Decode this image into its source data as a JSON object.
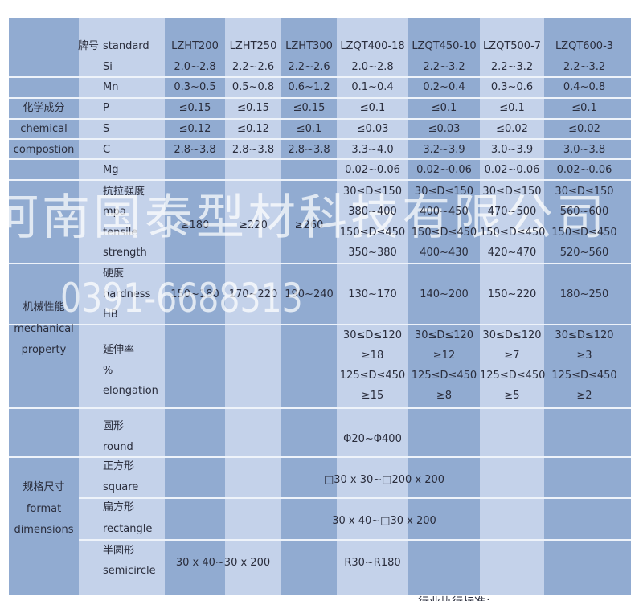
{
  "header": {
    "grade_cn": "牌号",
    "grade_en": "standard",
    "grades": [
      "LZHT200",
      "LZHT250",
      "LZHT300",
      "LZQT400-18",
      "LZQT450-10",
      "LZQT500-7",
      "LZQT600-3"
    ]
  },
  "chemical": {
    "label_cn": "化学成分",
    "label_en1": "chemical",
    "label_en2": "compostion",
    "rows": [
      {
        "name": "Si",
        "values": [
          "2.0~2.8",
          "2.2~2.6",
          "2.2~2.6",
          "2.0~2.8",
          "2.2~3.2",
          "2.2~3.2",
          "2.2~3.2"
        ]
      },
      {
        "name": "Mn",
        "values": [
          "0.3~0.5",
          "0.5~0.8",
          "0.6~1.2",
          "0.1~0.4",
          "0.2~0.4",
          "0.3~0.6",
          "0.4~0.8"
        ]
      },
      {
        "name": "P",
        "values": [
          "≤0.15",
          "≤0.15",
          "≤0.15",
          "≤0.1",
          "≤0.1",
          "≤0.1",
          "≤0.1"
        ]
      },
      {
        "name": "S",
        "values": [
          "≤0.12",
          "≤0.12",
          "≤0.1",
          "≤0.03",
          "≤0.03",
          "≤0.02",
          "≤0.02"
        ]
      },
      {
        "name": "C",
        "values": [
          "2.8~3.8",
          "2.8~3.8",
          "2.8~3.8",
          "3.3~4.0",
          "3.2~3.9",
          "3.0~3.9",
          "3.0~3.8"
        ]
      },
      {
        "name": "Mg",
        "values": [
          "",
          "",
          "",
          "0.02~0.06",
          "0.02~0.06",
          "0.02~0.06",
          "0.02~0.06"
        ]
      }
    ]
  },
  "mechanical": {
    "label_cn": "机械性能",
    "label_en1": "mechanical",
    "label_en2": "property",
    "tensile": {
      "labels": [
        "抗拉强度",
        "mpa",
        "tensile",
        "strength"
      ],
      "ht": [
        "≥180",
        "≥220",
        "≥260"
      ],
      "qt": [
        {
          "r1": "30≤D≤150",
          "v1": "380~400",
          "r2": "150≤D≤450",
          "v2": "350~380"
        },
        {
          "r1": "30≤D≤150",
          "v1": "400~450",
          "r2": "150≤D≤450",
          "v2": "400~430"
        },
        {
          "r1": "30≤D≤150",
          "v1": "470~500",
          "r2": "150≤D≤450",
          "v2": "420~470"
        },
        {
          "r1": "30≤D≤150",
          "v1": "560~600",
          "r2": "150≤D≤450",
          "v2": "520~560"
        }
      ]
    },
    "hardness": {
      "labels": [
        "硬度",
        "hardness",
        "HB"
      ],
      "values": [
        "150~180",
        "170~220",
        "190~240",
        "130~170",
        "140~200",
        "150~220",
        "180~250"
      ]
    },
    "elongation": {
      "labels": [
        "延伸率",
        "%",
        "elongation"
      ],
      "qt": [
        {
          "r1": "30≤D≤120",
          "v1": "≥18",
          "r2": "125≤D≤450",
          "v2": "≥15"
        },
        {
          "r1": "30≤D≤120",
          "v1": "≥12",
          "r2": "125≤D≤450",
          "v2": "≥8"
        },
        {
          "r1": "30≤D≤120",
          "v1": "≥7",
          "r2": "125≤D≤450",
          "v2": "≥5"
        },
        {
          "r1": "30≤D≤120",
          "v1": "≥3",
          "r2": "125≤D≤450",
          "v2": "≥2"
        }
      ]
    }
  },
  "format": {
    "label_cn": "规格尺寸",
    "label_en1": "format",
    "label_en2": "dimensions",
    "round": {
      "cn": "圆形",
      "en": "round",
      "value": "Φ20~Φ400"
    },
    "square": {
      "cn": "正方形",
      "en": "square",
      "value": "□30 x 30~□200 x 200"
    },
    "rectangle": {
      "cn": "扁方形",
      "en": "rectangle",
      "value": "30 x 40~□30 x 200"
    },
    "semicircle": {
      "cn": "半圆形",
      "en": "semicircle",
      "ht_value": "30 x 40~30 x 200",
      "qt_value": "R30~R180"
    }
  },
  "watermark": {
    "company": "河南国泰型材科技有限公司",
    "phone": "0391-6688313"
  },
  "footer": {
    "note": "行业执行标准："
  },
  "colors": {
    "dark_column": "#91abd1",
    "light_column": "#c4d2ea",
    "text": "#2a2d3c"
  }
}
